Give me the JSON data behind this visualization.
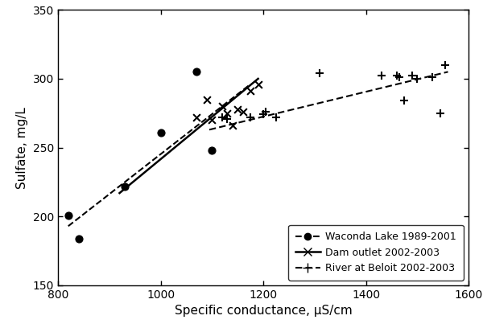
{
  "waconda_x": [
    820,
    840,
    930,
    1000,
    1070,
    1100
  ],
  "waconda_y": [
    201,
    184,
    222,
    261,
    305,
    248
  ],
  "dam_x": [
    1070,
    1090,
    1100,
    1120,
    1130,
    1140,
    1150,
    1160,
    1175,
    1190
  ],
  "dam_y": [
    272,
    285,
    270,
    280,
    275,
    266,
    278,
    276,
    291,
    296
  ],
  "river_x": [
    1120,
    1130,
    1175,
    1200,
    1205,
    1225,
    1310,
    1430,
    1460,
    1465,
    1475,
    1490,
    1500,
    1530,
    1545,
    1555
  ],
  "river_y": [
    272,
    271,
    272,
    274,
    276,
    272,
    304,
    302,
    302,
    301,
    284,
    302,
    300,
    301,
    275,
    310
  ],
  "waconda_line_x": [
    820,
    1175
  ],
  "waconda_line_y": [
    193,
    296
  ],
  "dam_line_x": [
    920,
    1190
  ],
  "dam_line_y": [
    217,
    300
  ],
  "river_line_x": [
    1095,
    1560
  ],
  "river_line_y": [
    263,
    305
  ],
  "xlim": [
    800,
    1600
  ],
  "ylim": [
    150,
    350
  ],
  "xticks": [
    800,
    1000,
    1200,
    1400,
    1600
  ],
  "yticks": [
    150,
    200,
    250,
    300,
    350
  ],
  "xlabel": "Specific conductance, μS/cm",
  "ylabel": "Sulfate, mg/L",
  "legend_labels": [
    "Waconda Lake 1989-2001",
    "Dam outlet 2002-2003",
    "River at Beloit 2002-2003"
  ],
  "background_color": "#ffffff",
  "line_color": "#000000",
  "figsize": [
    6.0,
    4.08
  ],
  "dpi": 100
}
